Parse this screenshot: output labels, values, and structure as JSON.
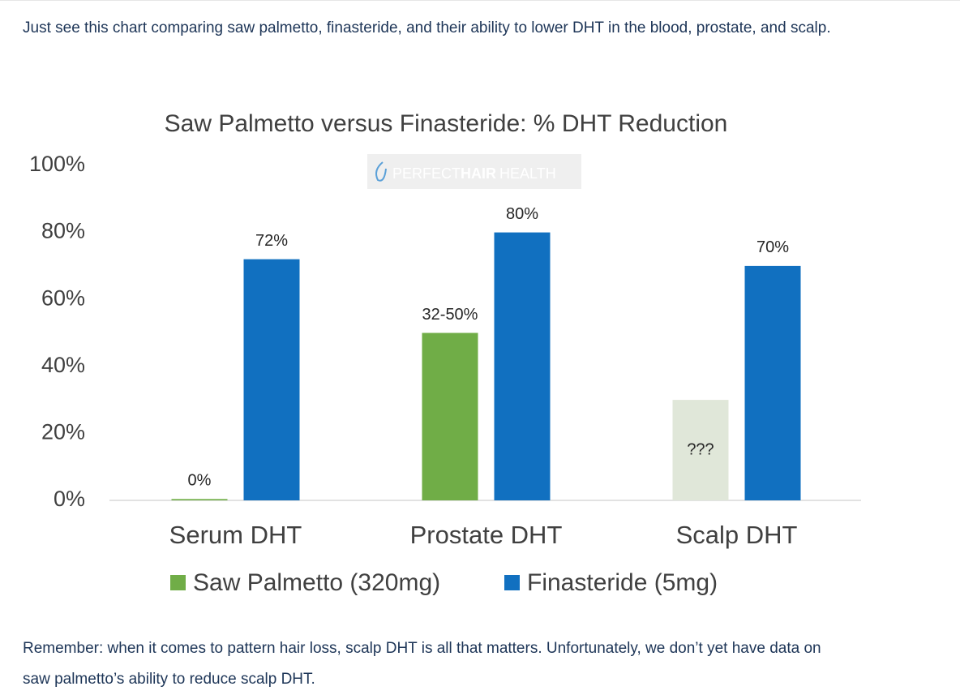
{
  "intro": "Just see this chart comparing saw palmetto, finasteride, and their ability to lower DHT in the blood, prostate, and scalp.",
  "outro": "Remember: when it comes to pattern hair loss, scalp DHT is all that matters. Unfortunately, we don’t yet have data on saw palmetto’s ability to reduce scalp DHT.",
  "chart_data": {
    "type": "bar",
    "title": "Saw Palmetto versus Finasteride: % DHT Reduction",
    "watermark": [
      "PERFECT",
      "HAIR",
      "HEALTH"
    ],
    "categories": [
      "Serum DHT",
      "Prostate DHT",
      "Scalp DHT"
    ],
    "series": [
      {
        "name": "Saw Palmetto (320mg)",
        "color": "#70ad47",
        "colors": [
          "#70ad47",
          "#70ad47",
          "#e0e7d9"
        ],
        "values": [
          0.4,
          50,
          30
        ],
        "value_labels": [
          "0%",
          "32-50%",
          "???"
        ]
      },
      {
        "name": "Finasteride (5mg)",
        "color": "#1170c0",
        "values": [
          72,
          80,
          70
        ],
        "value_labels": [
          "72%",
          "80%",
          "70%"
        ]
      }
    ],
    "ylim": [
      0,
      100
    ],
    "yticks": [
      {
        "value": 0,
        "label": "0%"
      },
      {
        "value": 20,
        "label": "20%"
      },
      {
        "value": 40,
        "label": "40%"
      },
      {
        "value": 60,
        "label": "60%"
      },
      {
        "value": 80,
        "label": "80%"
      },
      {
        "value": 100,
        "label": "100%"
      }
    ],
    "grid": false,
    "legend": "bottom"
  }
}
